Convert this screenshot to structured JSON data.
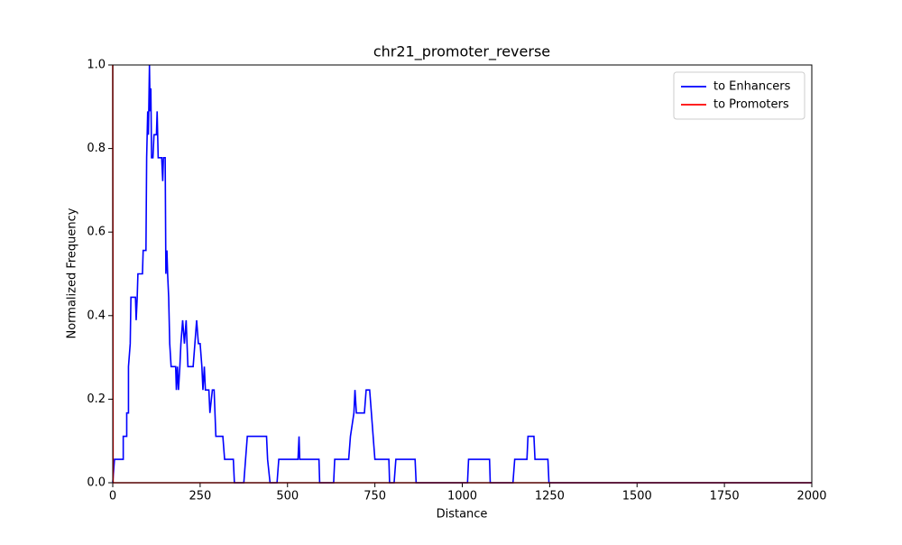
{
  "chart_data": {
    "type": "line",
    "title": "chr21_promoter_reverse",
    "x_label": "Distance",
    "y_label": "Normalized Frequency",
    "xlim": [
      0,
      2000
    ],
    "ylim": [
      0,
      1
    ],
    "xticks": [
      0,
      250,
      500,
      750,
      1000,
      1250,
      1500,
      1750,
      2000
    ],
    "yticks": [
      {
        "value": 0,
        "label": "0.0"
      },
      {
        "value": 0.2,
        "label": "0.2"
      },
      {
        "value": 0.4,
        "label": "0.4"
      },
      {
        "value": 0.6,
        "label": "0.6"
      },
      {
        "value": 0.8,
        "label": "0.8"
      },
      {
        "value": 1,
        "label": "1.0"
      }
    ],
    "legend": "upper right",
    "grid": false,
    "series": [
      {
        "name": "to Enhancers",
        "color": "#0000ff",
        "x": [
          0,
          5,
          30,
          30,
          40,
          40,
          45,
          45,
          50,
          52,
          65,
          67,
          70,
          72,
          85,
          87,
          95,
          97,
          100,
          102,
          105,
          107,
          109,
          111,
          115,
          118,
          125,
          127,
          130,
          140,
          143,
          145,
          150,
          152,
          155,
          157,
          160,
          163,
          167,
          180,
          182,
          185,
          188,
          192,
          195,
          200,
          205,
          210,
          215,
          230,
          235,
          240,
          245,
          250,
          255,
          258,
          262,
          265,
          275,
          278,
          285,
          290,
          295,
          315,
          320,
          345,
          348,
          375,
          380,
          385,
          440,
          443,
          450,
          470,
          475,
          530,
          533,
          535,
          590,
          592,
          632,
          635,
          675,
          680,
          690,
          693,
          697,
          720,
          725,
          735,
          740,
          745,
          750,
          790,
          792,
          805,
          810,
          865,
          868,
          1015,
          1018,
          1078,
          1080,
          1145,
          1150,
          1185,
          1188,
          1205,
          1208,
          1245,
          1248,
          2000
        ],
        "values": [
          0,
          0.056,
          0.056,
          0.111,
          0.111,
          0.167,
          0.167,
          0.278,
          0.333,
          0.444,
          0.444,
          0.389,
          0.444,
          0.5,
          0.5,
          0.556,
          0.556,
          0.778,
          0.889,
          0.833,
          1.0,
          0.889,
          0.944,
          0.778,
          0.778,
          0.833,
          0.833,
          0.889,
          0.778,
          0.778,
          0.722,
          0.778,
          0.778,
          0.5,
          0.556,
          0.5,
          0.444,
          0.333,
          0.278,
          0.278,
          0.222,
          0.278,
          0.222,
          0.278,
          0.333,
          0.389,
          0.333,
          0.389,
          0.278,
          0.278,
          0.333,
          0.389,
          0.333,
          0.333,
          0.278,
          0.222,
          0.278,
          0.222,
          0.222,
          0.167,
          0.222,
          0.222,
          0.111,
          0.111,
          0.056,
          0.056,
          0,
          0,
          0.056,
          0.111,
          0.111,
          0.056,
          0,
          0,
          0.056,
          0.056,
          0.111,
          0.056,
          0.056,
          0,
          0,
          0.056,
          0.056,
          0.111,
          0.167,
          0.222,
          0.167,
          0.167,
          0.222,
          0.222,
          0.167,
          0.111,
          0.056,
          0.056,
          0,
          0,
          0.056,
          0.056,
          0,
          0,
          0.056,
          0.056,
          0,
          0,
          0.056,
          0.056,
          0.111,
          0.111,
          0.056,
          0.056,
          0,
          0
        ]
      },
      {
        "name": "to Promoters",
        "color": "#ff0000",
        "x": [
          0,
          1,
          2000
        ],
        "values": [
          1,
          0,
          0
        ]
      }
    ]
  }
}
